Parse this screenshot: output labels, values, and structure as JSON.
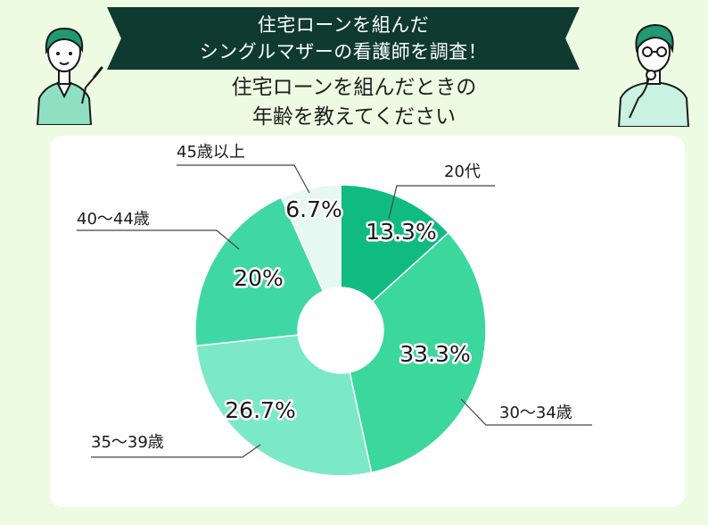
{
  "header": {
    "banner_line1": "住宅ローンを組んだ",
    "banner_line2": "シングルマザーの看護師を調査！",
    "question_line1": "住宅ローンを組んだときの",
    "question_line2": "年齢を教えてください"
  },
  "colors": {
    "background": "#eefbe3",
    "banner": "#0f3a2f",
    "card": "#ffffff"
  },
  "chart_data": {
    "type": "pie",
    "donut": true,
    "categories": [
      "20代",
      "30〜34歳",
      "35〜39歳",
      "40〜44歳",
      "45歳以上"
    ],
    "values": [
      13.3,
      33.3,
      26.7,
      20,
      6.7
    ],
    "value_labels": [
      "13.3%",
      "33.3%",
      "26.7%",
      "20%",
      "6.7%"
    ],
    "colors": [
      "#10bb82",
      "#3bd79d",
      "#7be8c6",
      "#3fd8a4",
      "#e6f8f1"
    ],
    "legend": "callout labels"
  }
}
